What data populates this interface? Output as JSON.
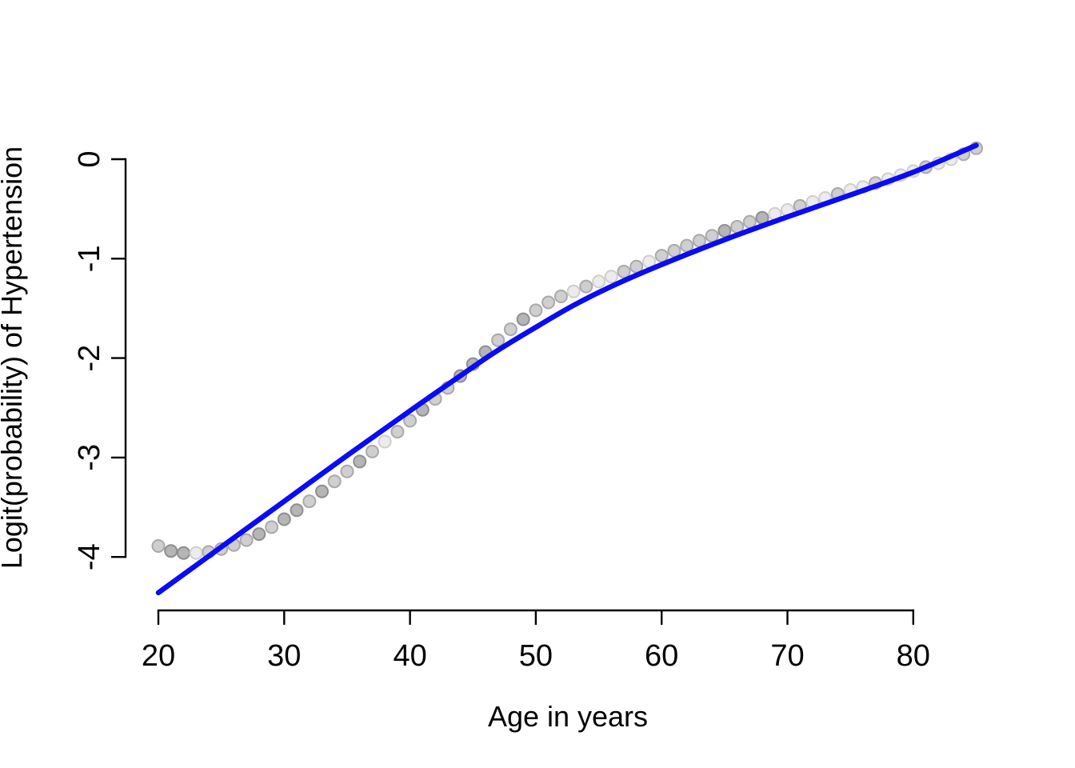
{
  "figure": {
    "background": "#ffffff",
    "description": "Scatter plot of empirical logits of hypertension by age with fitted blue curve"
  },
  "chart_data": {
    "type": "scatter",
    "title": "",
    "xlabel": "Age in years",
    "ylabel": "Logit(probability) of Hypertension",
    "grid": false,
    "legend": null,
    "axis_color": "#000000",
    "x_axis": {
      "ticks": [
        20,
        30,
        40,
        50,
        60,
        70,
        80
      ],
      "shown_range": [
        20,
        80
      ]
    },
    "y_axis": {
      "ticks": [
        0,
        -1,
        -2,
        -3,
        -4
      ],
      "shown_range": [
        -4,
        0
      ]
    },
    "xlim": [
      20,
      85
    ],
    "ylim": [
      -4.45,
      0.2
    ],
    "series": [
      {
        "name": "observed-logit-points",
        "type": "scatter",
        "marker": "circle",
        "x": [
          20,
          21,
          22,
          23,
          24,
          25,
          26,
          27,
          28,
          29,
          30,
          31,
          32,
          33,
          34,
          35,
          36,
          37,
          38,
          39,
          40,
          41,
          42,
          43,
          44,
          45,
          46,
          47,
          48,
          49,
          50,
          51,
          52,
          53,
          54,
          55,
          56,
          57,
          58,
          59,
          60,
          61,
          62,
          63,
          64,
          65,
          66,
          67,
          68,
          69,
          70,
          71,
          72,
          73,
          74,
          75,
          76,
          77,
          78,
          79,
          80,
          81,
          82,
          83,
          84,
          85
        ],
        "y": [
          -3.89,
          -3.94,
          -3.96,
          -3.96,
          -3.95,
          -3.92,
          -3.88,
          -3.83,
          -3.77,
          -3.7,
          -3.62,
          -3.53,
          -3.44,
          -3.34,
          -3.24,
          -3.14,
          -3.04,
          -2.94,
          -2.84,
          -2.74,
          -2.63,
          -2.52,
          -2.41,
          -2.3,
          -2.18,
          -2.06,
          -1.94,
          -1.82,
          -1.71,
          -1.61,
          -1.52,
          -1.44,
          -1.38,
          -1.33,
          -1.28,
          -1.23,
          -1.18,
          -1.13,
          -1.08,
          -1.03,
          -0.97,
          -0.92,
          -0.87,
          -0.82,
          -0.77,
          -0.72,
          -0.68,
          -0.63,
          -0.59,
          -0.55,
          -0.51,
          -0.47,
          -0.43,
          -0.39,
          -0.35,
          -0.31,
          -0.28,
          -0.24,
          -0.2,
          -0.16,
          -0.12,
          -0.08,
          -0.04,
          0.0,
          0.05,
          0.11
        ],
        "shades": [
          1,
          2,
          2,
          0,
          1,
          1,
          1,
          1,
          2,
          1,
          2,
          2,
          1,
          2,
          1,
          1,
          2,
          1,
          0,
          1,
          1,
          2,
          1,
          1,
          2,
          2,
          2,
          1,
          1,
          2,
          1,
          1,
          1,
          0,
          1,
          0,
          0,
          1,
          1,
          0,
          1,
          1,
          1,
          1,
          1,
          2,
          1,
          1,
          2,
          0,
          0,
          1,
          0,
          0,
          1,
          0,
          0,
          1,
          0,
          0,
          0,
          1,
          0,
          0,
          1,
          1
        ],
        "palette": {
          "fills": [
            "#ececec",
            "#cfcfcf",
            "#b5b5b5"
          ],
          "strokes": [
            "#cfcfcf",
            "#a9a9a9",
            "#8f8f8f"
          ]
        }
      },
      {
        "name": "fitted-logit-line",
        "type": "line",
        "color": "#0b0bf5",
        "x": [
          20,
          25,
          30,
          35,
          40,
          45,
          47,
          50,
          53,
          56,
          60,
          65,
          70,
          75,
          80,
          85
        ],
        "y": [
          -4.36,
          -3.9,
          -3.44,
          -2.98,
          -2.53,
          -2.09,
          -1.92,
          -1.69,
          -1.47,
          -1.28,
          -1.06,
          -0.81,
          -0.58,
          -0.36,
          -0.13,
          0.14
        ]
      }
    ]
  }
}
